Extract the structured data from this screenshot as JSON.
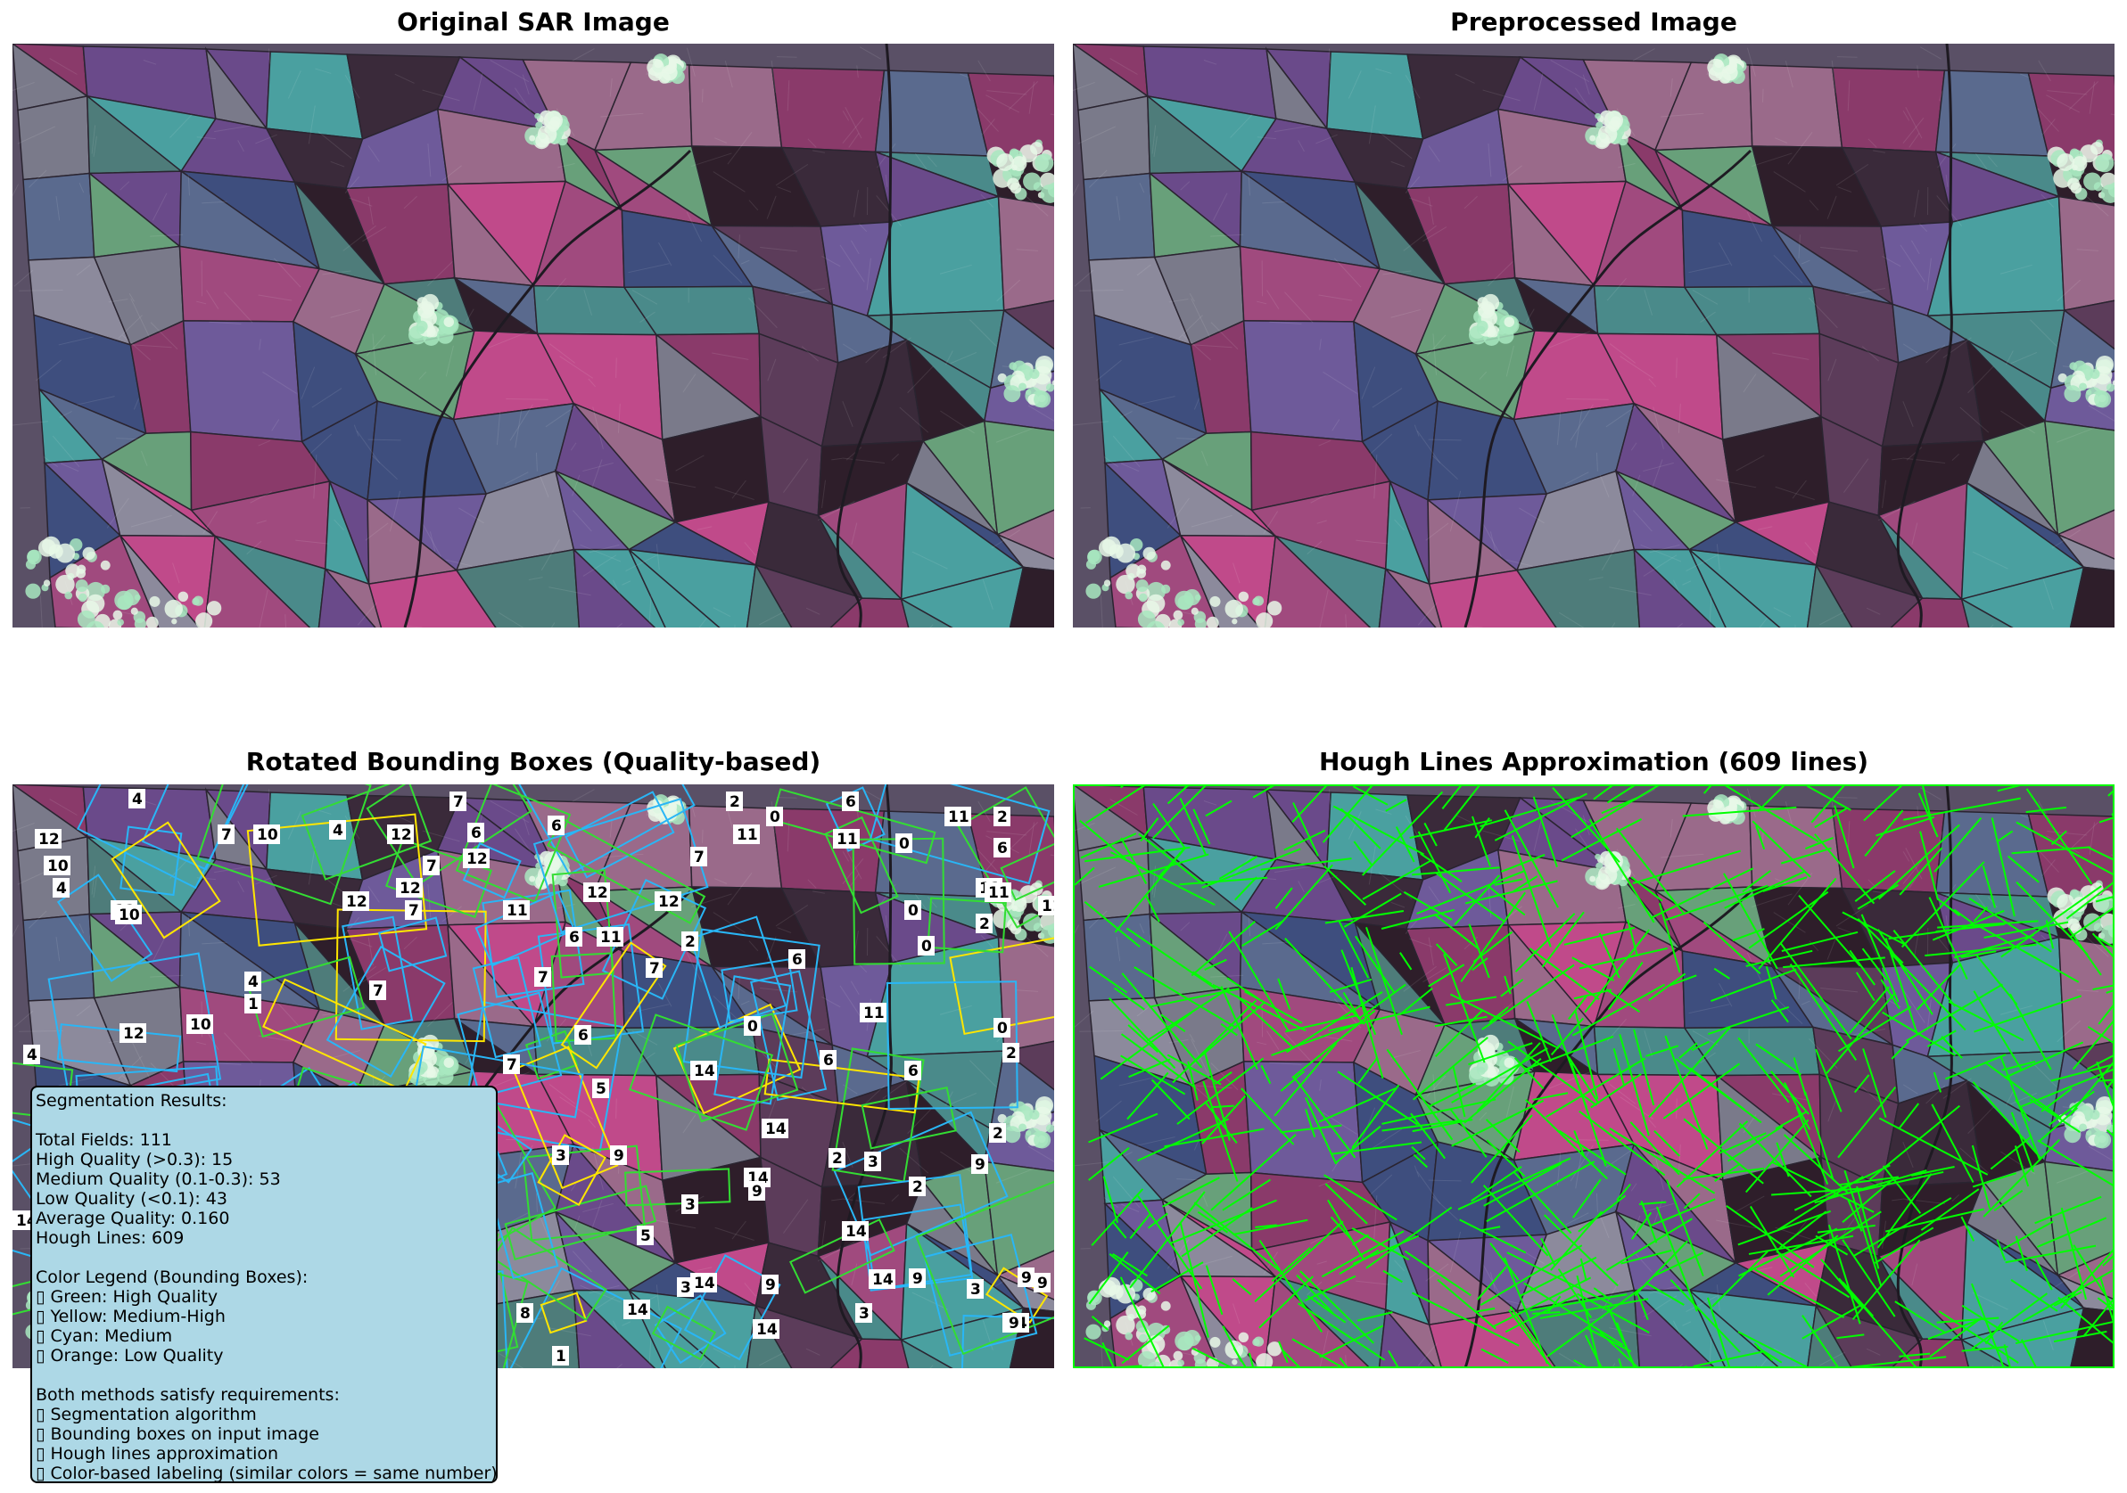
{
  "panels": {
    "original": {
      "title": "Original SAR Image"
    },
    "preprocessed": {
      "title": "Preprocessed Image"
    },
    "boxes": {
      "title": "Rotated Bounding Boxes (Quality-based)"
    },
    "hough": {
      "title": "Hough Lines Approximation (609 lines)"
    }
  },
  "box_labels": [
    {
      "t": "4"
    },
    {
      "t": "7"
    },
    {
      "t": "2"
    },
    {
      "t": "6"
    },
    {
      "t": "12"
    },
    {
      "t": "10"
    },
    {
      "t": "7"
    },
    {
      "t": "4"
    },
    {
      "t": "12"
    },
    {
      "t": "6"
    },
    {
      "t": "12"
    },
    {
      "t": "0"
    },
    {
      "t": "11"
    },
    {
      "t": "6"
    },
    {
      "t": "11"
    },
    {
      "t": "0"
    },
    {
      "t": "11"
    },
    {
      "t": "2"
    },
    {
      "t": "10"
    },
    {
      "t": "4"
    },
    {
      "t": "7"
    },
    {
      "t": "12"
    },
    {
      "t": "12"
    },
    {
      "t": "6"
    },
    {
      "t": "7"
    },
    {
      "t": "0"
    },
    {
      "t": "12"
    },
    {
      "t": "10"
    },
    {
      "t": "12"
    },
    {
      "t": "7"
    },
    {
      "t": "11"
    },
    {
      "t": "11"
    },
    {
      "t": "12"
    },
    {
      "t": "11"
    },
    {
      "t": "11"
    },
    {
      "t": "2"
    },
    {
      "t": "6"
    },
    {
      "t": "11"
    },
    {
      "t": "2"
    },
    {
      "t": "6"
    },
    {
      "t": "0"
    },
    {
      "t": "4"
    },
    {
      "t": "1"
    },
    {
      "t": "7"
    },
    {
      "t": "7"
    },
    {
      "t": "7"
    },
    {
      "t": "12"
    },
    {
      "t": "10"
    },
    {
      "t": "0"
    },
    {
      "t": "11"
    },
    {
      "t": "0"
    },
    {
      "t": "6"
    },
    {
      "t": "4"
    },
    {
      "t": "7"
    },
    {
      "t": "14"
    },
    {
      "t": "6"
    },
    {
      "t": "6"
    },
    {
      "t": "2"
    },
    {
      "t": "2"
    },
    {
      "t": "5"
    },
    {
      "t": "14"
    },
    {
      "t": "5"
    },
    {
      "t": "3"
    },
    {
      "t": "9"
    },
    {
      "t": "2"
    },
    {
      "t": "3"
    },
    {
      "t": "9"
    },
    {
      "t": "14"
    },
    {
      "t": "9"
    },
    {
      "t": "2"
    },
    {
      "t": "3"
    },
    {
      "t": "14"
    },
    {
      "t": "5"
    },
    {
      "t": "14"
    },
    {
      "t": "3"
    },
    {
      "t": "14"
    },
    {
      "t": "9"
    },
    {
      "t": "14"
    },
    {
      "t": "9"
    },
    {
      "t": "3"
    },
    {
      "t": "9"
    },
    {
      "t": "3"
    },
    {
      "t": "14"
    },
    {
      "t": "14"
    },
    {
      "t": "9"
    },
    {
      "t": "9"
    },
    {
      "t": "8"
    },
    {
      "t": "1"
    },
    {
      "t": "14"
    }
  ],
  "info": {
    "heading": "Segmentation Results:",
    "total": "Total Fields: 111",
    "high": "High Quality (>0.3): 15",
    "medium": "Medium Quality (0.1-0.3): 53",
    "low": "Low Quality (<0.1): 43",
    "avg": "Average Quality: 0.160",
    "hough": "Hough Lines: 609",
    "legend_title": "Color Legend (Bounding Boxes):",
    "legend": [
      "▯ Green: High Quality",
      "▯ Yellow: Medium-High",
      "▯ Cyan: Medium",
      "▯ Orange: Low Quality"
    ],
    "req_title": "Both methods satisfy requirements:",
    "reqs": [
      "▯ Segmentation algorithm",
      "▯ Bounding boxes on input image",
      "▯ Hough lines approximation",
      "▯ Color-based labeling (similar colors = same number)"
    ]
  },
  "colors": {
    "green": "#33dd33",
    "yellow": "#ffe600",
    "cyan": "#29b6f6",
    "orange": "#ff9900",
    "hough": "#00ff00",
    "infobox_bg": "#add8e6"
  }
}
